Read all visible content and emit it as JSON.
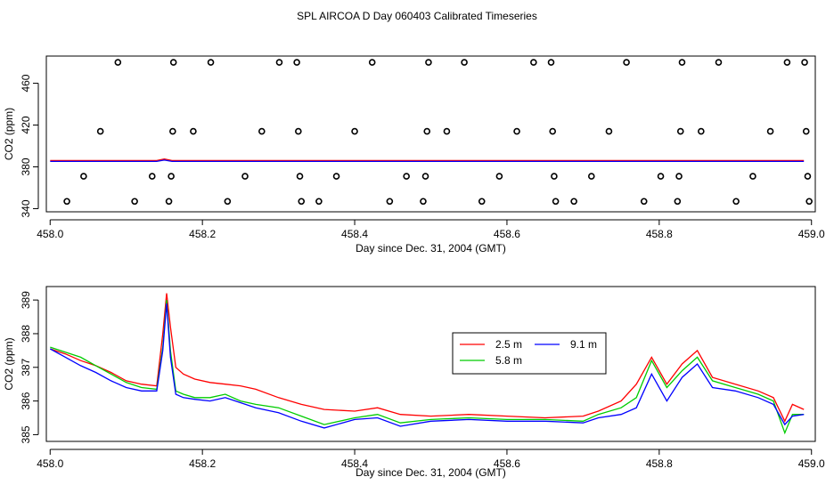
{
  "title": "SPL AIRCOA D  Day 060403  Calibrated Timeseries",
  "colors": {
    "red": "#ff0000",
    "green": "#00cc00",
    "blue": "#0000ff",
    "axis": "#000000"
  },
  "chart_data": [
    {
      "type": "scatter",
      "title": "",
      "xlabel": "Day since Dec. 31, 2004 (GMT)",
      "ylabel": "CO2 (ppm)",
      "xlim": [
        457.995,
        459.005
      ],
      "ylim": [
        337,
        486
      ],
      "xticks": [
        458.0,
        458.2,
        458.4,
        458.6,
        458.8,
        459.0
      ],
      "xtick_labels": [
        "458.0",
        "458.2",
        "458.4",
        "458.6",
        "458.8",
        "459.0"
      ],
      "yticks": [
        340,
        380,
        420,
        460
      ],
      "ytick_labels": [
        "340",
        "380",
        "420",
        "460"
      ],
      "calibration_points": [
        {
          "x": 458.022,
          "y": 347
        },
        {
          "x": 458.044,
          "y": 371
        },
        {
          "x": 458.066,
          "y": 414
        },
        {
          "x": 458.089,
          "y": 480
        },
        {
          "x": 458.111,
          "y": 347
        },
        {
          "x": 458.134,
          "y": 371
        },
        {
          "x": 458.156,
          "y": 347
        },
        {
          "x": 458.159,
          "y": 371
        },
        {
          "x": 458.161,
          "y": 414
        },
        {
          "x": 458.162,
          "y": 480
        },
        {
          "x": 458.188,
          "y": 414
        },
        {
          "x": 458.211,
          "y": 480
        },
        {
          "x": 458.233,
          "y": 347
        },
        {
          "x": 458.256,
          "y": 371
        },
        {
          "x": 458.278,
          "y": 414
        },
        {
          "x": 458.301,
          "y": 480
        },
        {
          "x": 458.324,
          "y": 480
        },
        {
          "x": 458.326,
          "y": 414
        },
        {
          "x": 458.328,
          "y": 371
        },
        {
          "x": 458.33,
          "y": 347
        },
        {
          "x": 458.353,
          "y": 347
        },
        {
          "x": 458.376,
          "y": 371
        },
        {
          "x": 458.4,
          "y": 414
        },
        {
          "x": 458.423,
          "y": 480
        },
        {
          "x": 458.446,
          "y": 347
        },
        {
          "x": 458.468,
          "y": 371
        },
        {
          "x": 458.49,
          "y": 347
        },
        {
          "x": 458.493,
          "y": 371
        },
        {
          "x": 458.495,
          "y": 414
        },
        {
          "x": 458.497,
          "y": 480
        },
        {
          "x": 458.521,
          "y": 414
        },
        {
          "x": 458.544,
          "y": 480
        },
        {
          "x": 458.567,
          "y": 347
        },
        {
          "x": 458.59,
          "y": 371
        },
        {
          "x": 458.613,
          "y": 414
        },
        {
          "x": 458.635,
          "y": 480
        },
        {
          "x": 458.658,
          "y": 480
        },
        {
          "x": 458.66,
          "y": 414
        },
        {
          "x": 458.662,
          "y": 371
        },
        {
          "x": 458.664,
          "y": 347
        },
        {
          "x": 458.688,
          "y": 347
        },
        {
          "x": 458.711,
          "y": 371
        },
        {
          "x": 458.734,
          "y": 414
        },
        {
          "x": 458.757,
          "y": 480
        },
        {
          "x": 458.78,
          "y": 347
        },
        {
          "x": 458.802,
          "y": 371
        },
        {
          "x": 458.824,
          "y": 347
        },
        {
          "x": 458.826,
          "y": 371
        },
        {
          "x": 458.828,
          "y": 414
        },
        {
          "x": 458.83,
          "y": 480
        },
        {
          "x": 458.855,
          "y": 414
        },
        {
          "x": 458.878,
          "y": 480
        },
        {
          "x": 458.901,
          "y": 347
        },
        {
          "x": 458.923,
          "y": 371
        },
        {
          "x": 458.946,
          "y": 414
        },
        {
          "x": 458.968,
          "y": 480
        },
        {
          "x": 458.991,
          "y": 480
        },
        {
          "x": 458.993,
          "y": 414
        },
        {
          "x": 458.995,
          "y": 371
        },
        {
          "x": 458.997,
          "y": 347
        }
      ],
      "series": [
        {
          "name": "2.5 m",
          "color": "#ff0000",
          "x": [
            458.0,
            458.05,
            458.1,
            458.14,
            458.15,
            458.16,
            458.17,
            458.2,
            458.22,
            458.25,
            458.3,
            458.35,
            458.4,
            458.45,
            458.5,
            458.55,
            458.6,
            458.65,
            458.7,
            458.75,
            458.8,
            458.85,
            458.9,
            458.95,
            458.99
          ],
          "y": [
            386.0,
            386.0,
            386.0,
            386.0,
            387.5,
            386.0,
            386.0,
            386.0,
            386.0,
            386.0,
            386.0,
            386.0,
            386.0,
            386.0,
            386.0,
            386.0,
            386.0,
            386.0,
            386.0,
            386.0,
            386.0,
            386.0,
            386.0,
            386.0,
            386.0
          ]
        },
        {
          "name": "9.1 m",
          "color": "#0000ff",
          "x": [
            458.0,
            458.05,
            458.1,
            458.14,
            458.15,
            458.16,
            458.17,
            458.2,
            458.22,
            458.25,
            458.3,
            458.35,
            458.4,
            458.45,
            458.5,
            458.55,
            458.6,
            458.65,
            458.7,
            458.75,
            458.8,
            458.85,
            458.9,
            458.95,
            458.99
          ],
          "y": [
            385.2,
            385.2,
            385.2,
            385.2,
            386.5,
            385.2,
            385.2,
            385.2,
            385.2,
            385.2,
            385.2,
            385.2,
            385.2,
            385.2,
            385.2,
            385.2,
            385.2,
            385.2,
            385.2,
            385.2,
            385.2,
            385.2,
            385.2,
            385.2,
            385.2
          ]
        }
      ]
    },
    {
      "type": "line",
      "title": "",
      "xlabel": "Day since Dec. 31, 2004 (GMT)",
      "ylabel": "CO2 (ppm)",
      "xlim": [
        457.995,
        459.005
      ],
      "ylim": [
        384.8,
        389.4
      ],
      "xticks": [
        458.0,
        458.2,
        458.4,
        458.6,
        458.8,
        459.0
      ],
      "xtick_labels": [
        "458.0",
        "458.2",
        "458.4",
        "458.6",
        "458.8",
        "459.0"
      ],
      "yticks": [
        385,
        386,
        387,
        388,
        389
      ],
      "ytick_labels": [
        "385",
        "386",
        "387",
        "388",
        "389"
      ],
      "legend_position": "center-right",
      "series": [
        {
          "name": "2.5 m",
          "color": "#ff0000",
          "x": [
            458.0,
            458.02,
            458.04,
            458.06,
            458.08,
            458.1,
            458.12,
            458.14,
            458.148,
            458.153,
            458.158,
            458.165,
            458.175,
            458.19,
            458.21,
            458.23,
            458.25,
            458.27,
            458.3,
            458.33,
            458.36,
            458.4,
            458.43,
            458.46,
            458.5,
            458.55,
            458.6,
            458.65,
            458.7,
            458.72,
            458.75,
            458.77,
            458.79,
            458.81,
            458.83,
            458.85,
            458.87,
            458.9,
            458.93,
            458.95,
            458.965,
            458.975,
            458.99
          ],
          "y": [
            387.55,
            387.4,
            387.2,
            387.05,
            386.85,
            386.6,
            386.5,
            386.45,
            388.0,
            389.2,
            388.2,
            387.0,
            386.8,
            386.65,
            386.55,
            386.5,
            386.45,
            386.35,
            386.1,
            385.9,
            385.75,
            385.7,
            385.8,
            385.6,
            385.55,
            385.6,
            385.55,
            385.5,
            385.55,
            385.7,
            386.0,
            386.5,
            387.3,
            386.5,
            387.1,
            387.5,
            386.7,
            386.5,
            386.3,
            386.1,
            385.4,
            385.9,
            385.75
          ]
        },
        {
          "name": "5.8 m",
          "color": "#00cc00",
          "x": [
            458.0,
            458.02,
            458.04,
            458.06,
            458.08,
            458.1,
            458.12,
            458.14,
            458.148,
            458.153,
            458.158,
            458.165,
            458.175,
            458.19,
            458.21,
            458.23,
            458.25,
            458.27,
            458.3,
            458.33,
            458.36,
            458.4,
            458.43,
            458.46,
            458.5,
            458.55,
            458.6,
            458.65,
            458.7,
            458.72,
            458.75,
            458.77,
            458.79,
            458.81,
            458.83,
            458.85,
            458.87,
            458.9,
            458.93,
            458.95,
            458.965,
            458.975,
            458.99
          ],
          "y": [
            387.6,
            387.45,
            387.3,
            387.05,
            386.8,
            386.55,
            386.4,
            386.35,
            387.6,
            389.0,
            387.5,
            386.3,
            386.2,
            386.1,
            386.1,
            386.2,
            386.0,
            385.9,
            385.8,
            385.55,
            385.3,
            385.5,
            385.6,
            385.35,
            385.45,
            385.5,
            385.45,
            385.45,
            385.4,
            385.6,
            385.8,
            386.1,
            387.2,
            386.4,
            386.9,
            387.3,
            386.6,
            386.4,
            386.2,
            386.0,
            385.05,
            385.6,
            385.6
          ]
        },
        {
          "name": "9.1 m",
          "color": "#0000ff",
          "x": [
            458.0,
            458.02,
            458.04,
            458.06,
            458.08,
            458.1,
            458.12,
            458.14,
            458.148,
            458.153,
            458.158,
            458.165,
            458.175,
            458.19,
            458.21,
            458.23,
            458.25,
            458.27,
            458.3,
            458.33,
            458.36,
            458.4,
            458.43,
            458.46,
            458.5,
            458.55,
            458.6,
            458.65,
            458.7,
            458.72,
            458.75,
            458.77,
            458.79,
            458.81,
            458.83,
            458.85,
            458.87,
            458.9,
            458.93,
            458.95,
            458.965,
            458.975,
            458.99
          ],
          "y": [
            387.55,
            387.3,
            387.05,
            386.85,
            386.6,
            386.4,
            386.3,
            386.3,
            387.5,
            388.9,
            387.3,
            386.2,
            386.1,
            386.05,
            386.0,
            386.1,
            385.95,
            385.8,
            385.65,
            385.4,
            385.2,
            385.45,
            385.5,
            385.25,
            385.4,
            385.45,
            385.4,
            385.4,
            385.35,
            385.5,
            385.6,
            385.8,
            386.8,
            386.0,
            386.7,
            387.1,
            386.4,
            386.3,
            386.1,
            385.9,
            385.3,
            385.55,
            385.6
          ]
        }
      ]
    }
  ]
}
